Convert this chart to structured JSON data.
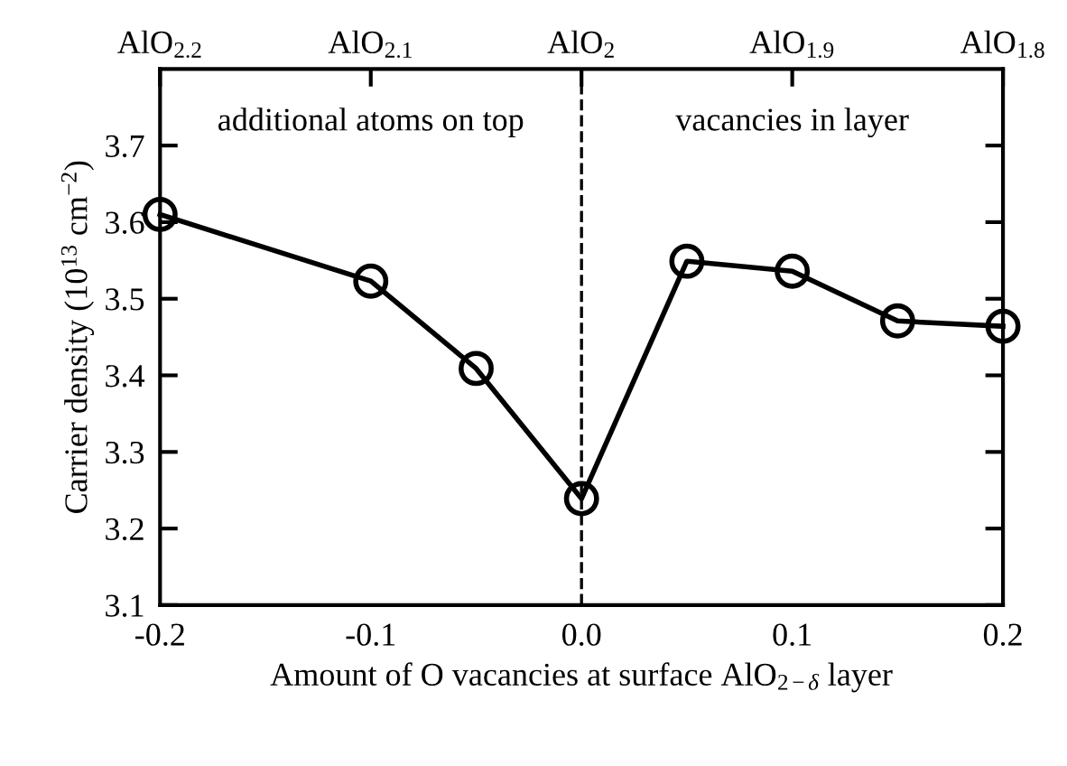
{
  "chart_data": {
    "type": "line",
    "xlabel": "Amount of O vacancies at surface AlO$_{2−δ}$ layer",
    "ylabel": "Carrier density (10$^{13}$ cm$^{−2}$)",
    "x": [
      -0.2,
      -0.1,
      -0.05,
      0.0,
      0.05,
      0.1,
      0.15,
      0.2
    ],
    "series": [
      {
        "color": "#000000",
        "values": [
          3.61,
          3.523,
          3.409,
          3.239,
          3.549,
          3.536,
          3.471,
          3.464
        ]
      }
    ],
    "marker": "circle",
    "line_style": "solid",
    "xlim": [
      -0.2,
      0.2
    ],
    "xticks": [
      {
        "value": -0.2,
        "label": "-0.2"
      },
      {
        "value": -0.1,
        "label": "-0.1"
      },
      {
        "value": 0.0,
        "label": "0.0"
      },
      {
        "value": 0.1,
        "label": "0.1"
      },
      {
        "value": 0.2,
        "label": "0.2"
      }
    ],
    "x2lim": [
      2.2,
      1.8
    ],
    "x2ticks": [
      {
        "value": 2.2,
        "label": "AlO$_{2.2}$"
      },
      {
        "value": 2.1,
        "label": "AlO$_{2.1}$"
      },
      {
        "value": 2.0,
        "label": "AlO$_{2}$"
      },
      {
        "value": 1.9,
        "label": "AlO$_{1.9}$"
      },
      {
        "value": 1.8,
        "label": "AlO$_{1.8}$"
      }
    ],
    "ylim": [
      3.1,
      3.8
    ],
    "yticks": [
      3.1,
      3.2,
      3.3,
      3.4,
      3.5,
      3.6,
      3.7
    ],
    "ref_lines": [
      {
        "axis": "x",
        "value": 0.0,
        "line_style": "dashed",
        "color": "#000000"
      }
    ],
    "annotations": [
      "additional atoms on top",
      "vacancies in layer"
    ],
    "grid": false,
    "legend": false
  }
}
